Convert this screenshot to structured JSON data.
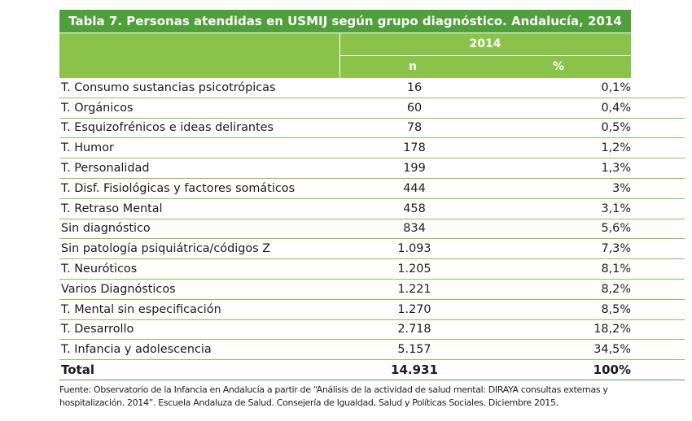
{
  "table": {
    "title": "Tabla 7. Personas atendidas en USMIJ según grupo diagnóstico. Andalucía, 2014",
    "year_header": "2014",
    "col_n": "n",
    "col_pct": "%",
    "rows": [
      {
        "label": "T. Consumo sustancias psicotrópicas",
        "n": "16",
        "pct": "0,1%"
      },
      {
        "label": "T. Orgánicos",
        "n": "60",
        "pct": "0,4%"
      },
      {
        "label": "T. Esquizofrénicos e ideas delirantes",
        "n": "78",
        "pct": "0,5%"
      },
      {
        "label": "T. Humor",
        "n": "178",
        "pct": "1,2%"
      },
      {
        "label": "T. Personalidad",
        "n": "199",
        "pct": "1,3%"
      },
      {
        "label": "T. Disf. Fisiológicas y factores somáticos",
        "n": "444",
        "pct": "3%"
      },
      {
        "label": "T. Retraso Mental",
        "n": "458",
        "pct": "3,1%"
      },
      {
        "label": "Sin diagnóstico",
        "n": "834",
        "pct": "5,6%"
      },
      {
        "label": "Sin patología psiquiátrica/códigos Z",
        "n": "1.093",
        "pct": "7,3%"
      },
      {
        "label": "T. Neuróticos",
        "n": "1.205",
        "pct": "8,1%"
      },
      {
        "label": "Varios Diagnósticos",
        "n": "1.221",
        "pct": "8,2%"
      },
      {
        "label": "T. Mental sin especificación",
        "n": "1.270",
        "pct": "8,5%"
      },
      {
        "label": "T. Desarrollo",
        "n": "2.718",
        "pct": "18,2%"
      },
      {
        "label": "T. Infancia y  adolescencia",
        "n": "5.157",
        "pct": "34,5%"
      }
    ],
    "total": {
      "label": "Total",
      "n": "14.931",
      "pct": "100%"
    }
  },
  "source": "Fuente: Observatorio de la Infancia en Andalucía a partir de “Análisis de la actividad de salud mental: DIRAYA consultas externas y hospitalización. 2014”. Escuela Andaluza de Salud. Consejería de Igualdad, Salud y Políticas Sociales. Diciembre 2015.",
  "colors": {
    "title_bg": "#4f9f3a",
    "header_bg": "#8bc34a",
    "rule": "#8bc34a"
  }
}
